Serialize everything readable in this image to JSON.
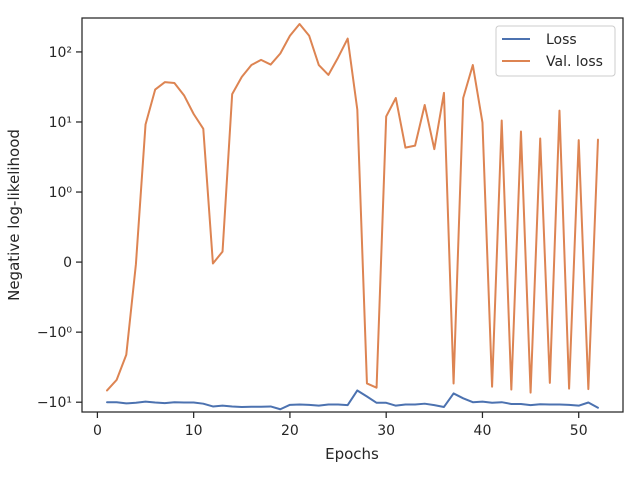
{
  "chart_data": {
    "type": "line",
    "title": "",
    "xlabel": "Epochs",
    "ylabel": "Negative log-likelihood",
    "yscale": "symlog",
    "symlog_linthresh": 1,
    "xlim": [
      -1.6,
      54.6
    ],
    "ylim": [
      -13.8,
      305
    ],
    "grid": false,
    "legend_position": "top-right",
    "x_ticks": [
      0,
      10,
      20,
      30,
      40,
      50
    ],
    "x_tick_labels": [
      "0",
      "10",
      "20",
      "30",
      "40",
      "50"
    ],
    "y_ticks": [
      -10,
      -1,
      0,
      1,
      10,
      100
    ],
    "y_tick_labels": [
      "−10¹",
      "−10⁰",
      "0",
      "10⁰",
      "10¹",
      "10²"
    ],
    "x": [
      1,
      2,
      3,
      4,
      5,
      6,
      7,
      8,
      9,
      10,
      11,
      12,
      13,
      14,
      15,
      16,
      17,
      18,
      19,
      20,
      21,
      22,
      23,
      24,
      25,
      26,
      27,
      28,
      29,
      30,
      31,
      32,
      33,
      34,
      35,
      36,
      37,
      38,
      39,
      40,
      41,
      42,
      43,
      44,
      45,
      46,
      47,
      48,
      49,
      50,
      51,
      52
    ],
    "series": [
      {
        "name": "Loss",
        "color": "#4c72b0",
        "values": [
          -10.0,
          -10.0,
          -10.4,
          -10.2,
          -9.8,
          -10.1,
          -10.3,
          -10.0,
          -10.1,
          -10.1,
          -10.5,
          -11.5,
          -11.2,
          -11.5,
          -11.7,
          -11.6,
          -11.6,
          -11.5,
          -12.6,
          -10.9,
          -10.8,
          -10.9,
          -11.2,
          -10.8,
          -10.8,
          -11.0,
          -6.8,
          -8.3,
          -10.2,
          -10.2,
          -11.2,
          -10.8,
          -10.8,
          -10.5,
          -11.0,
          -11.7,
          -7.5,
          -8.8,
          -10.0,
          -9.8,
          -10.2,
          -10.0,
          -10.6,
          -10.6,
          -11.0,
          -10.7,
          -10.8,
          -10.8,
          -10.9,
          -11.2,
          -10.1,
          -12.0
        ]
      },
      {
        "name": "Val. loss",
        "color": "#dd8452",
        "values": [
          -6.8,
          -4.8,
          -2.1,
          -0.03,
          9.2,
          29,
          37,
          36,
          24,
          13,
          8,
          -0.02,
          0.15,
          25,
          44,
          65,
          77,
          66,
          95,
          170,
          250,
          170,
          65,
          47,
          83,
          155,
          15,
          -5.4,
          -6.2,
          12,
          22,
          4.3,
          4.6,
          17.5,
          4.1,
          26,
          -5.4,
          22,
          65,
          9.8,
          -6.0,
          10.5,
          -6.6,
          7.3,
          -7.3,
          5.8,
          -5.3,
          14.5,
          -6.4,
          5.5,
          -6.5,
          5.6
        ]
      }
    ]
  }
}
